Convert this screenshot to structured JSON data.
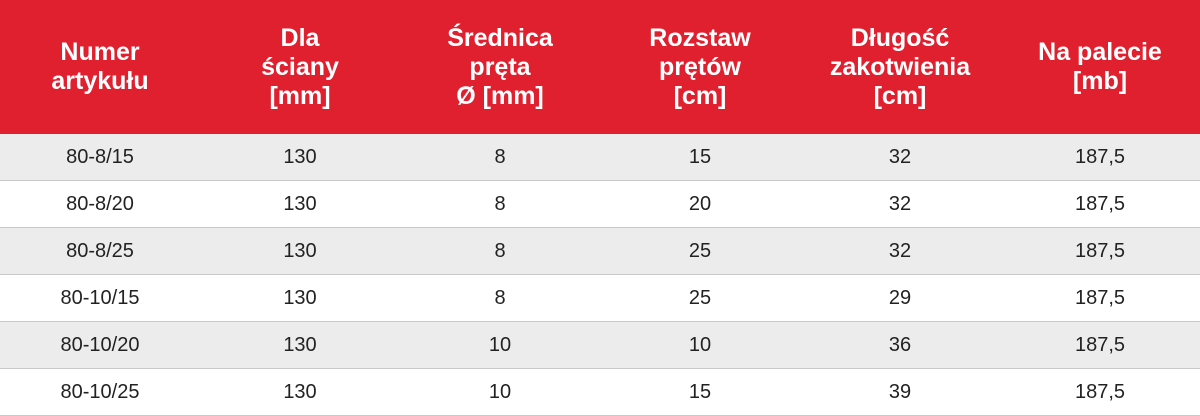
{
  "colors": {
    "header_bg": "#e0202f",
    "header_text": "#ffffff",
    "row_alt_bg": "#ececec",
    "row_bg": "#ffffff",
    "divider": "#c9c9c9"
  },
  "table": {
    "headers": [
      "Numer\nartykułu",
      "Dla\nściany\n[mm]",
      "Średnica\npręta\nØ [mm]",
      "Rozstaw\nprętów\n[cm]",
      "Długość\nzakotwienia\n[cm]",
      "Na palecie\n[mb]"
    ],
    "rows": [
      [
        "80-8/15",
        "130",
        "8",
        "15",
        "32",
        "187,5"
      ],
      [
        "80-8/20",
        "130",
        "8",
        "20",
        "32",
        "187,5"
      ],
      [
        "80-8/25",
        "130",
        "8",
        "25",
        "32",
        "187,5"
      ],
      [
        "80-10/15",
        "130",
        "8",
        "25",
        "29",
        "187,5"
      ],
      [
        "80-10/20",
        "130",
        "10",
        "10",
        "36",
        "187,5"
      ],
      [
        "80-10/25",
        "130",
        "10",
        "15",
        "39",
        "187,5"
      ]
    ]
  }
}
